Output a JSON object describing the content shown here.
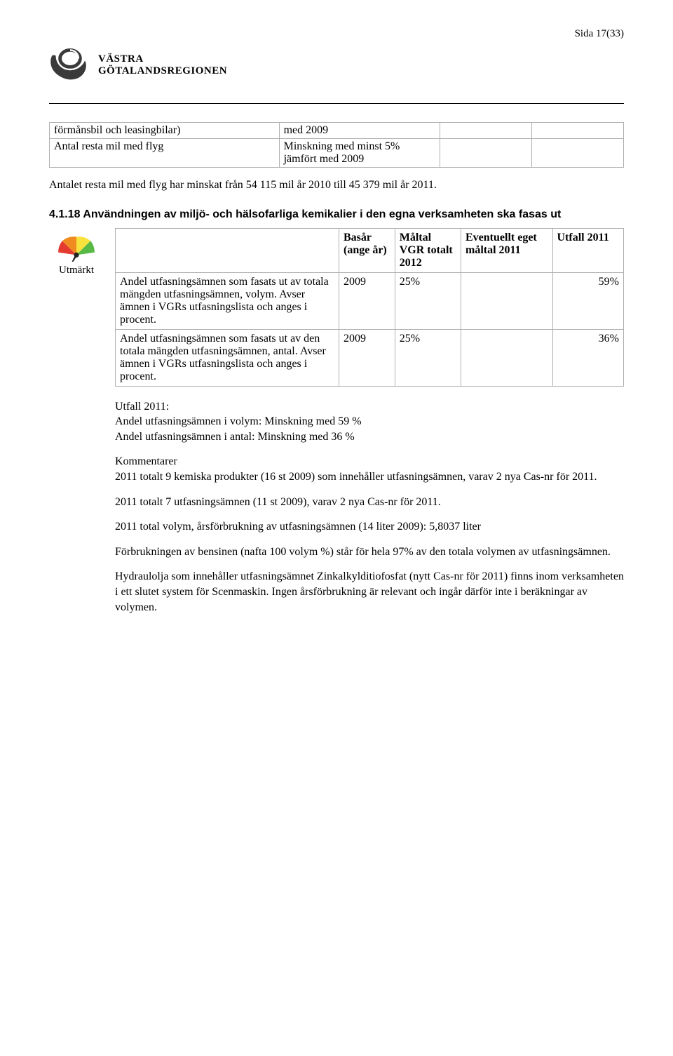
{
  "page_number": "Sida 17(33)",
  "logo": {
    "line1": "VÄSTRA",
    "line2": "GÖTALANDSREGIONEN"
  },
  "table1": {
    "rows": [
      [
        "förmånsbil och leasingbilar)",
        "med 2009",
        "",
        ""
      ],
      [
        "Antal resta mil med flyg",
        "Minskning med minst 5% jämfört med 2009",
        "",
        ""
      ]
    ]
  },
  "para1": "Antalet resta mil med flyg har minskat från 54 115 mil år 2010 till 45 379 mil år 2011.",
  "heading418": "4.1.18 Användningen av miljö- och hälsofarliga kemikalier i den egna verksamheten ska fasas ut",
  "gauge": {
    "label": "Utmärkt",
    "colors": [
      "#58b947",
      "#f7e23e",
      "#f08c1f",
      "#e43a2f"
    ],
    "needle_angle_deg": -150
  },
  "table418": {
    "headers": [
      "",
      "Basår (ange år)",
      "Måltal VGR totalt 2012",
      "Eventuellt eget måltal 2011",
      "Utfall 2011"
    ],
    "rows": [
      {
        "label": "Andel utfasningsämnen som fasats ut av totala mängden utfasningsämnen, volym. Avser ämnen i VGRs utfasningslista och anges i procent.",
        "basar": "2009",
        "maltal": "25%",
        "eget": "",
        "utfall": "59%"
      },
      {
        "label": "Andel utfasningsämnen som fasats ut av den totala mängden utfasningsämnen, antal. Avser ämnen i VGRs utfasningslista och anges i procent.",
        "basar": "2009",
        "maltal": "25%",
        "eget": "",
        "utfall": "36%"
      }
    ]
  },
  "utfall_block": {
    "title": "Utfall 2011:",
    "line1": "Andel utfasningsämnen i volym: Minskning med 59  %",
    "line2": "Andel utfasningsämnen i antal: Minskning med 36 %"
  },
  "kommentarer": {
    "title": "Kommentarer",
    "p1": "2011 totalt 9 kemiska produkter (16 st 2009) som innehåller utfasningsämnen, varav 2 nya Cas-nr för 2011.",
    "p2": "2011 totalt 7 utfasningsämnen (11 st 2009), varav 2 nya Cas-nr för 2011.",
    "p3": "2011 total volym, årsförbrukning av utfasningsämnen (14 liter 2009): 5,8037 liter",
    "p4": "Förbrukningen av bensinen (nafta 100 volym %) står för hela 97% av den totala volymen av utfasningsämnen.",
    "p5": "Hydraulolja som innehåller utfasningsämnet Zinkalkylditiofosfat (nytt Cas-nr för 2011) finns inom verksamheten i ett slutet system för  Scenmaskin. Ingen årsförbrukning är relevant och ingår därför inte i beräkningar av volymen."
  }
}
